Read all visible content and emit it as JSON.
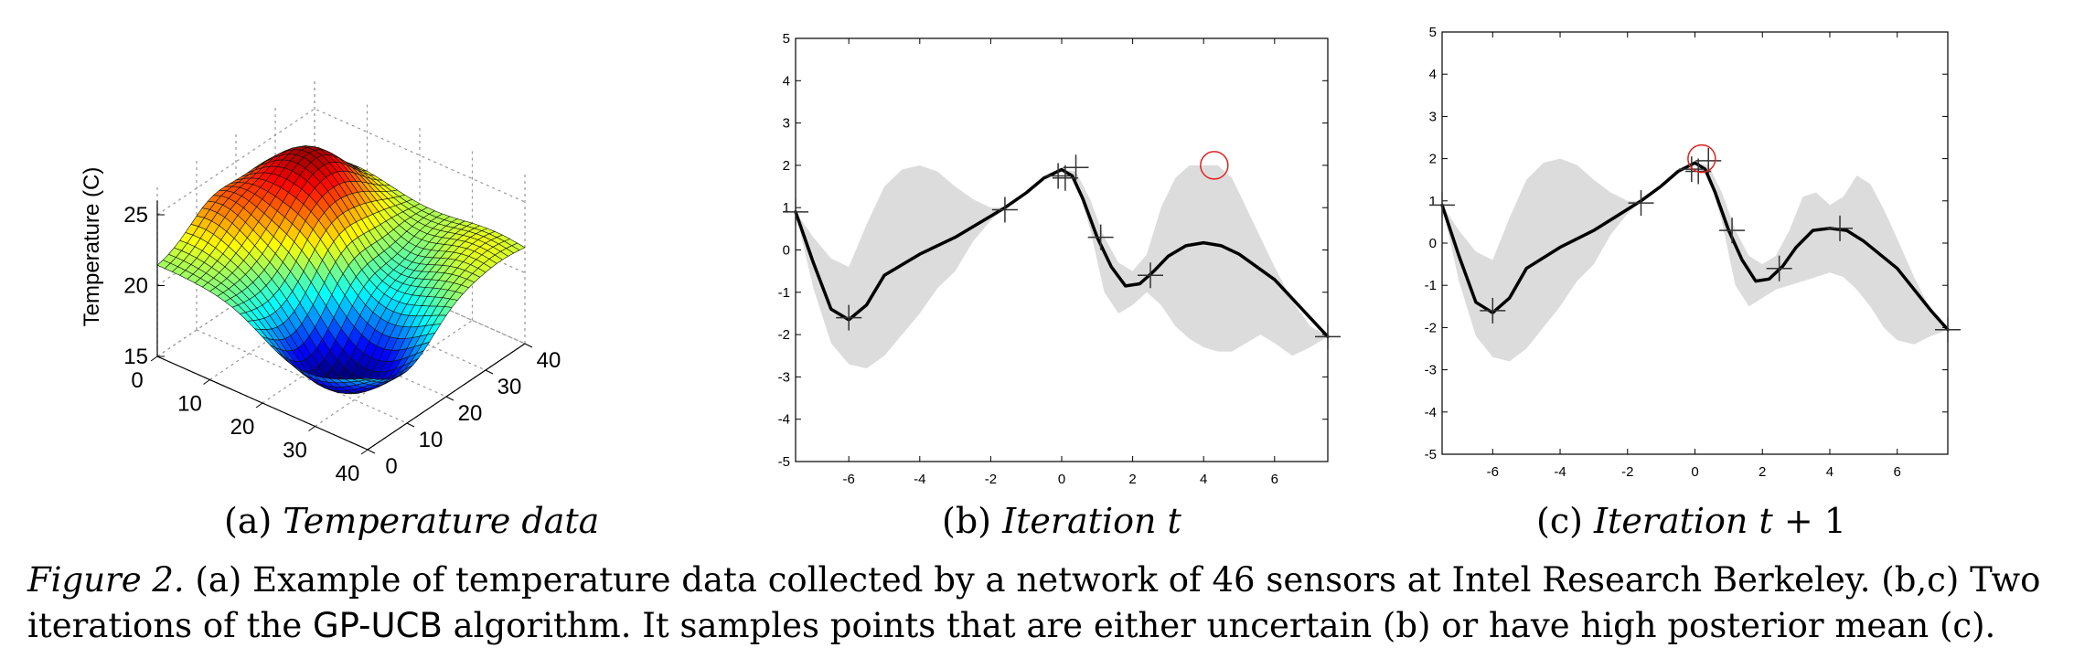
{
  "panels": {
    "a": {
      "zlabel": "Temperature (C)",
      "z_ticks": [
        "25",
        "20",
        "15"
      ],
      "x_ticks": [
        "0",
        "10",
        "20",
        "30",
        "40"
      ],
      "y_ticks": [
        "0",
        "10",
        "20",
        "30",
        "40"
      ]
    },
    "b": {
      "prefix": "(b)",
      "title": "Iteration t"
    },
    "c": {
      "prefix": "(c)",
      "title_pre": "Iteration t",
      "title_op": " + ",
      "title_post": "1"
    },
    "a_caption": {
      "prefix": "(a)",
      "title": "Temperature data"
    }
  },
  "caption": {
    "label": "Figure 2.",
    "part1": " (a) Example of temperature data collected by a network of 46 sensors at Intel Research Berkeley. (b,c) Two iterations of the ",
    "alg": "GP-UCB",
    "part2": " algorithm. It samples points that are either uncertain (b) or have high posterior mean (c)."
  },
  "chart_data": [
    {
      "type": "surface",
      "zlabel": "Temperature (C)",
      "xlim": [
        0,
        40
      ],
      "ylim": [
        0,
        40
      ],
      "zlim": [
        15,
        25
      ],
      "grid": true,
      "colormap": "jet"
    },
    {
      "type": "line",
      "xlim": [
        -7.5,
        7.5
      ],
      "ylim": [
        -5,
        5
      ],
      "x_ticks": [
        -6,
        -4,
        -2,
        0,
        2,
        4,
        6
      ],
      "y_ticks": [
        -5,
        -4,
        -3,
        -2,
        -1,
        0,
        1,
        2,
        3,
        4,
        5
      ],
      "mean": {
        "x": [
          -7.5,
          -7,
          -6.5,
          -6,
          -5.5,
          -5,
          -4,
          -3,
          -2,
          -1.6,
          -1,
          -0.5,
          0,
          0.3,
          0.6,
          1,
          1.4,
          1.8,
          2.2,
          2.6,
          3,
          3.5,
          4,
          4.5,
          5,
          6,
          7,
          7.5
        ],
        "y": [
          0.9,
          -0.3,
          -1.4,
          -1.65,
          -1.3,
          -0.6,
          -0.1,
          0.3,
          0.8,
          1.0,
          1.35,
          1.7,
          1.9,
          1.75,
          1.2,
          0.3,
          -0.4,
          -0.85,
          -0.8,
          -0.5,
          -0.15,
          0.1,
          0.17,
          0.1,
          -0.1,
          -0.7,
          -1.6,
          -2.05
        ]
      },
      "band_upper": {
        "x": [
          -7.5,
          -7,
          -6.5,
          -6,
          -5.5,
          -5,
          -4.5,
          -4,
          -3.5,
          -3,
          -2.5,
          -2,
          -1.6,
          -1,
          -0.5,
          0,
          0.4,
          0.8,
          1.2,
          1.6,
          2,
          2.4,
          2.8,
          3.2,
          3.6,
          4,
          4.4,
          4.8,
          5.2,
          5.6,
          6,
          6.5,
          7,
          7.5
        ],
        "y": [
          0.9,
          0.3,
          -0.2,
          -0.4,
          0.6,
          1.5,
          1.9,
          2.0,
          1.85,
          1.5,
          1.2,
          1.0,
          1.0,
          1.4,
          1.75,
          1.9,
          1.85,
          1.2,
          0.3,
          -0.3,
          -0.5,
          -0.1,
          1.0,
          1.7,
          2.0,
          2.0,
          2.0,
          1.7,
          1.0,
          0.3,
          -0.4,
          -1.2,
          -1.8,
          -2.05
        ]
      },
      "band_lower": {
        "x": [
          -7.5,
          -7,
          -6.5,
          -6,
          -5.5,
          -5,
          -4.5,
          -4,
          -3.5,
          -3,
          -2.5,
          -2,
          -1.6,
          -1,
          -0.5,
          0,
          0.4,
          0.8,
          1.2,
          1.6,
          2,
          2.4,
          2.8,
          3.2,
          3.6,
          4,
          4.4,
          4.8,
          5.2,
          5.6,
          6,
          6.5,
          7,
          7.5
        ],
        "y": [
          0.9,
          -0.9,
          -2.2,
          -2.7,
          -2.8,
          -2.5,
          -2.0,
          -1.5,
          -0.9,
          -0.5,
          0.2,
          0.7,
          1.0,
          1.35,
          1.7,
          1.9,
          1.6,
          0.5,
          -1.0,
          -1.5,
          -1.3,
          -1.0,
          -1.3,
          -1.8,
          -2.1,
          -2.3,
          -2.4,
          -2.4,
          -2.2,
          -2.0,
          -2.2,
          -2.5,
          -2.3,
          -2.05
        ]
      },
      "samples": [
        [
          -7.5,
          0.9
        ],
        [
          -6.0,
          -1.6
        ],
        [
          -1.6,
          0.95
        ],
        [
          -0.1,
          1.75
        ],
        [
          0.1,
          1.7
        ],
        [
          0.4,
          1.95
        ],
        [
          1.1,
          0.3
        ],
        [
          2.5,
          -0.6
        ],
        [
          7.5,
          -2.05
        ]
      ],
      "next_sample": [
        4.3,
        2.0
      ]
    },
    {
      "type": "line",
      "xlim": [
        -7.5,
        7.5
      ],
      "ylim": [
        -5,
        5
      ],
      "x_ticks": [
        -6,
        -4,
        -2,
        0,
        2,
        4,
        6
      ],
      "y_ticks": [
        -5,
        -4,
        -3,
        -2,
        -1,
        0,
        1,
        2,
        3,
        4,
        5
      ],
      "mean": {
        "x": [
          -7.5,
          -7,
          -6.5,
          -6,
          -5.5,
          -5,
          -4,
          -3,
          -2,
          -1.6,
          -1,
          -0.5,
          0,
          0.3,
          0.6,
          1,
          1.4,
          1.8,
          2.2,
          2.6,
          3,
          3.5,
          4,
          4.5,
          5,
          6,
          7,
          7.5
        ],
        "y": [
          0.9,
          -0.3,
          -1.4,
          -1.65,
          -1.3,
          -0.6,
          -0.1,
          0.3,
          0.8,
          1.0,
          1.35,
          1.7,
          1.9,
          1.75,
          1.2,
          0.3,
          -0.4,
          -0.9,
          -0.85,
          -0.55,
          -0.1,
          0.3,
          0.35,
          0.3,
          0.05,
          -0.6,
          -1.6,
          -2.05
        ]
      },
      "band_upper": {
        "x": [
          -7.5,
          -7,
          -6.5,
          -6,
          -5.5,
          -5,
          -4.5,
          -4,
          -3.5,
          -3,
          -2.5,
          -2,
          -1.6,
          -1,
          -0.5,
          0,
          0.4,
          0.8,
          1.2,
          1.6,
          2,
          2.4,
          2.8,
          3.2,
          3.6,
          4,
          4.4,
          4.8,
          5.2,
          5.6,
          6,
          6.5,
          7,
          7.5
        ],
        "y": [
          0.9,
          0.3,
          -0.2,
          -0.4,
          0.6,
          1.5,
          1.9,
          2.0,
          1.85,
          1.5,
          1.2,
          1.0,
          1.0,
          1.4,
          1.75,
          1.9,
          1.85,
          1.2,
          0.3,
          -0.3,
          -0.5,
          -0.3,
          0.3,
          1.1,
          1.2,
          0.9,
          1.1,
          1.6,
          1.4,
          0.8,
          0.1,
          -0.8,
          -1.6,
          -2.05
        ]
      },
      "band_lower": {
        "x": [
          -7.5,
          -7,
          -6.5,
          -6,
          -5.5,
          -5,
          -4.5,
          -4,
          -3.5,
          -3,
          -2.5,
          -2,
          -1.6,
          -1,
          -0.5,
          0,
          0.4,
          0.8,
          1.2,
          1.6,
          2,
          2.4,
          2.8,
          3.2,
          3.6,
          4,
          4.4,
          4.8,
          5.2,
          5.6,
          6,
          6.5,
          7,
          7.5
        ],
        "y": [
          0.9,
          -0.9,
          -2.2,
          -2.7,
          -2.8,
          -2.5,
          -2.0,
          -1.5,
          -0.9,
          -0.5,
          0.2,
          0.7,
          1.0,
          1.35,
          1.7,
          1.9,
          1.6,
          0.5,
          -1.0,
          -1.5,
          -1.3,
          -1.1,
          -1.0,
          -0.9,
          -0.8,
          -0.7,
          -0.8,
          -1.1,
          -1.5,
          -2.0,
          -2.3,
          -2.4,
          -2.2,
          -2.05
        ]
      },
      "samples": [
        [
          -7.5,
          0.9
        ],
        [
          -6.0,
          -1.6
        ],
        [
          -1.6,
          0.95
        ],
        [
          -0.1,
          1.75
        ],
        [
          0.1,
          1.7
        ],
        [
          0.4,
          1.95
        ],
        [
          1.1,
          0.3
        ],
        [
          2.5,
          -0.6
        ],
        [
          4.3,
          0.35
        ],
        [
          7.5,
          -2.05
        ]
      ],
      "next_sample": [
        0.2,
        2.0
      ]
    }
  ]
}
